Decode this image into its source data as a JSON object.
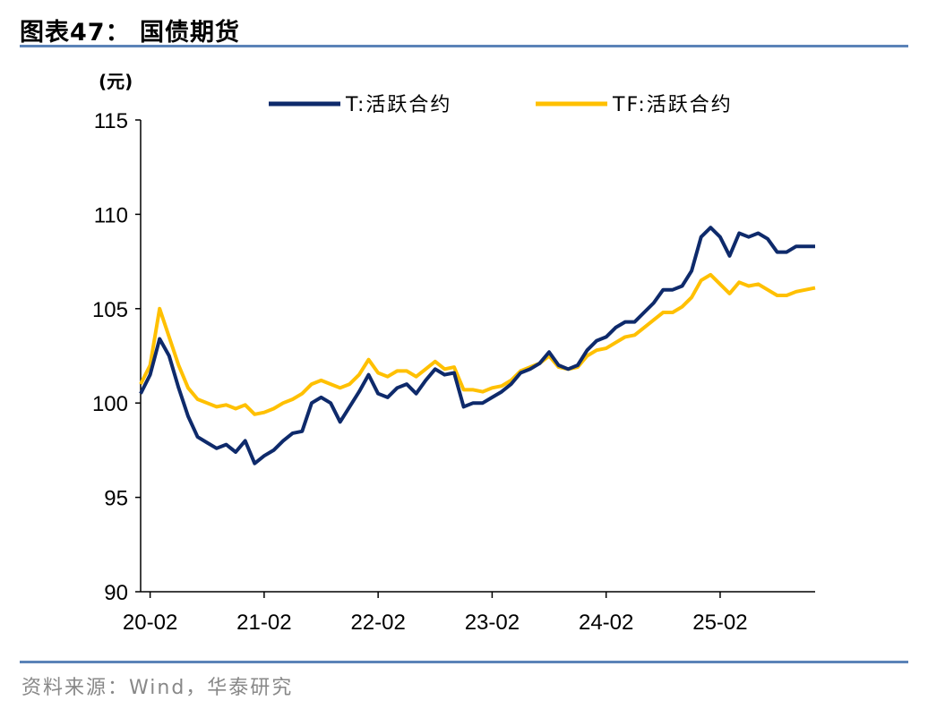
{
  "header": {
    "title": "图表47：  国债期货"
  },
  "footer": {
    "source": "资料来源：Wind，华泰研究"
  },
  "colors": {
    "T": "#0e2a6b",
    "TF": "#ffc000",
    "rule": "#5b83b8"
  },
  "chart_data": {
    "type": "line",
    "title": "",
    "ylabel": "(元)",
    "xlabel": "",
    "ylim": [
      90,
      115
    ],
    "yticks": [
      "90",
      "95",
      "100",
      "105",
      "110",
      "115"
    ],
    "xticks": [
      "20-02",
      "21-02",
      "22-02",
      "23-02",
      "24-02",
      "25-02"
    ],
    "xrange": [
      "2020-01",
      "2025-12"
    ],
    "grid": false,
    "legend": "top",
    "x": [
      "2020-01",
      "2020-02",
      "2020-03",
      "2020-04",
      "2020-05",
      "2020-06",
      "2020-07",
      "2020-08",
      "2020-09",
      "2020-10",
      "2020-11",
      "2020-12",
      "2021-01",
      "2021-02",
      "2021-03",
      "2021-04",
      "2021-05",
      "2021-06",
      "2021-07",
      "2021-08",
      "2021-09",
      "2021-10",
      "2021-11",
      "2021-12",
      "2022-01",
      "2022-02",
      "2022-03",
      "2022-04",
      "2022-05",
      "2022-06",
      "2022-07",
      "2022-08",
      "2022-09",
      "2022-10",
      "2022-11",
      "2022-12",
      "2023-01",
      "2023-02",
      "2023-03",
      "2023-04",
      "2023-05",
      "2023-06",
      "2023-07",
      "2023-08",
      "2023-09",
      "2023-10",
      "2023-11",
      "2023-12",
      "2024-01",
      "2024-02",
      "2024-03",
      "2024-04",
      "2024-05",
      "2024-06",
      "2024-07",
      "2024-08",
      "2024-09",
      "2024-10",
      "2024-11",
      "2024-12",
      "2025-01",
      "2025-02",
      "2025-03",
      "2025-04",
      "2025-05",
      "2025-06",
      "2025-07",
      "2025-08",
      "2025-09",
      "2025-10",
      "2025-11",
      "2025-12"
    ],
    "series": [
      {
        "name": "T:活跃合约",
        "values": [
          100.5,
          101.5,
          103.4,
          102.5,
          100.8,
          99.3,
          98.2,
          97.9,
          97.6,
          97.8,
          97.4,
          98.0,
          96.8,
          97.2,
          97.5,
          98.0,
          98.4,
          98.5,
          100.0,
          100.3,
          100.0,
          99.0,
          99.8,
          100.6,
          101.5,
          100.5,
          100.3,
          100.8,
          101.0,
          100.5,
          101.2,
          101.8,
          101.5,
          101.6,
          99.8,
          100.0,
          100.0,
          100.3,
          100.6,
          101.0,
          101.6,
          101.8,
          102.1,
          102.7,
          102.0,
          101.8,
          102.0,
          102.8,
          103.3,
          103.5,
          104.0,
          104.3,
          104.3,
          104.8,
          105.3,
          106.0,
          106.0,
          106.2,
          107.0,
          108.8,
          109.3,
          108.8,
          107.8,
          109.0,
          108.8,
          109.0,
          108.7,
          108.0,
          108.0,
          108.3,
          108.3,
          108.3
        ]
      },
      {
        "name": "TF:活跃合约",
        "values": [
          101.0,
          102.0,
          105.0,
          103.5,
          102.0,
          100.8,
          100.2,
          100.0,
          99.8,
          99.9,
          99.7,
          99.9,
          99.4,
          99.5,
          99.7,
          100.0,
          100.2,
          100.5,
          101.0,
          101.2,
          101.0,
          100.8,
          101.0,
          101.5,
          102.3,
          101.6,
          101.4,
          101.7,
          101.7,
          101.4,
          101.8,
          102.2,
          101.8,
          101.9,
          100.7,
          100.7,
          100.6,
          100.8,
          100.9,
          101.2,
          101.7,
          101.9,
          102.1,
          102.5,
          101.9,
          101.8,
          101.9,
          102.5,
          102.8,
          102.9,
          103.2,
          103.5,
          103.6,
          104.0,
          104.4,
          104.8,
          104.8,
          105.1,
          105.6,
          106.5,
          106.8,
          106.3,
          105.8,
          106.4,
          106.2,
          106.3,
          106.0,
          105.7,
          105.7,
          105.9,
          106.0,
          106.1
        ]
      }
    ]
  }
}
